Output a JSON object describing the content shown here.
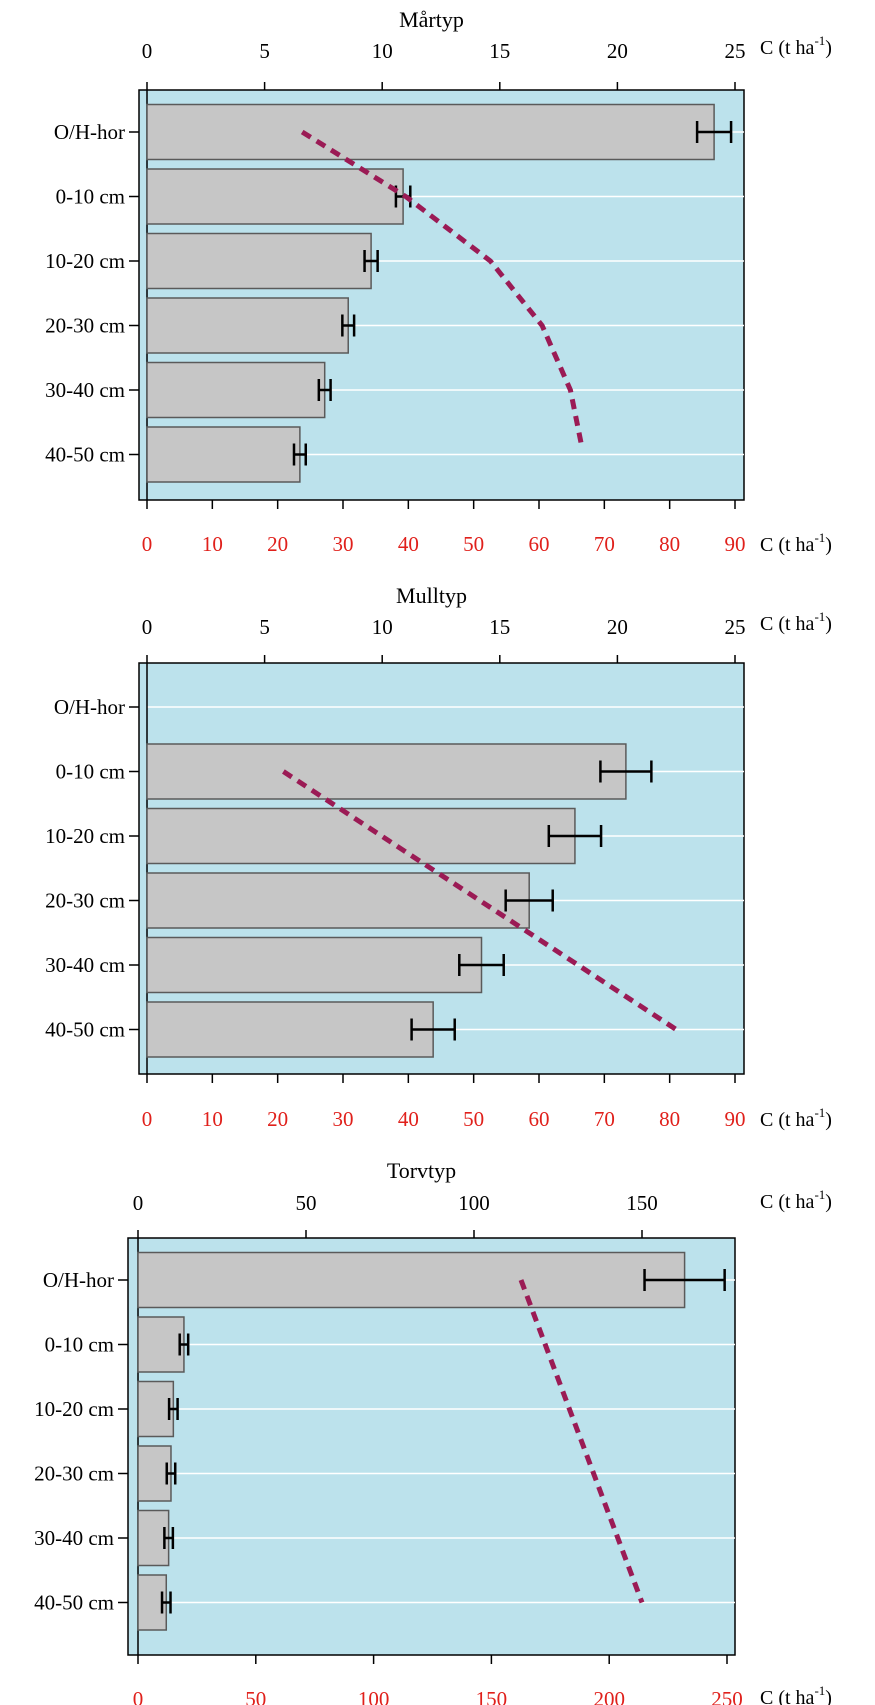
{
  "chart_data": [
    {
      "type": "bar",
      "title": "Mårtyp",
      "categories": [
        "O/H-hor",
        "0-10 cm",
        "10-20 cm",
        "20-30 cm",
        "30-40 cm",
        "40-50 cm"
      ],
      "values": [
        86.8,
        39.2,
        34.3,
        30.8,
        27.2,
        23.4
      ],
      "errors": [
        2.6,
        1.1,
        1.0,
        0.9,
        0.9,
        0.9
      ],
      "top_axis": {
        "label": "C (t ha",
        "sup": "-1",
        "label_end": ")",
        "ticks": [
          0,
          5,
          10,
          15,
          20,
          25
        ],
        "range": [
          0,
          25.5
        ]
      },
      "bottom_axis": {
        "label": "C (t ha",
        "sup": "-1",
        "label_end": ")",
        "ticks": [
          0,
          10,
          20,
          30,
          40,
          50,
          60,
          70,
          80,
          90
        ],
        "range": [
          0,
          91.7
        ]
      },
      "trend_line": {
        "axis": "top",
        "points": [
          [
            6.6,
            0
          ],
          [
            11.0,
            1
          ],
          [
            14.6,
            2
          ],
          [
            16.8,
            3
          ],
          [
            18.0,
            4
          ],
          [
            18.5,
            4.9
          ]
        ]
      },
      "colors": {
        "background": "#bce2ec",
        "bar": "#c6c6c6",
        "trend": "#9b1b55",
        "bottom_axis": "#e0201b"
      }
    },
    {
      "type": "bar",
      "title": "Mulltyp",
      "categories": [
        "O/H-hor",
        "0-10 cm",
        "10-20 cm",
        "20-30 cm",
        "30-40 cm",
        "40-50 cm"
      ],
      "values": [
        null,
        73.3,
        65.5,
        58.5,
        51.2,
        43.8
      ],
      "errors": [
        null,
        3.9,
        4.0,
        3.6,
        3.4,
        3.3
      ],
      "top_axis": {
        "label": "C (t ha",
        "sup": "-1",
        "label_end": ")",
        "ticks": [
          0,
          5,
          10,
          15,
          20,
          25
        ],
        "range": [
          0,
          25.5
        ]
      },
      "bottom_axis": {
        "label": "C (t ha",
        "sup": "-1",
        "label_end": ")",
        "ticks": [
          0,
          10,
          20,
          30,
          40,
          50,
          60,
          70,
          80,
          90
        ],
        "range": [
          0,
          91.7
        ]
      },
      "trend_line": {
        "axis": "top",
        "points": [
          [
            5.8,
            1
          ],
          [
            22.5,
            5
          ]
        ]
      },
      "colors": {
        "background": "#bce2ec",
        "bar": "#c6c6c6",
        "trend": "#9b1b55",
        "bottom_axis": "#e0201b"
      }
    },
    {
      "type": "bar",
      "title": "Torvtyp",
      "categories": [
        "O/H-hor",
        "0-10 cm",
        "10-20 cm",
        "20-30 cm",
        "30-40 cm",
        "40-50 cm"
      ],
      "values": [
        232,
        19.5,
        15.0,
        14.0,
        13.0,
        12.0
      ],
      "errors": [
        17,
        1.8,
        1.8,
        1.8,
        1.8,
        1.8
      ],
      "top_axis": {
        "label": "C (t ha",
        "sup": "-1",
        "label_end": ")",
        "ticks": [
          0,
          50,
          100,
          150
        ],
        "range": [
          0,
          178
        ]
      },
      "bottom_axis": {
        "label": "C (t ha",
        "sup": "-1",
        "label_end": ")",
        "ticks": [
          0,
          50,
          100,
          150,
          200,
          250
        ],
        "range": [
          0,
          254
        ]
      },
      "trend_line": {
        "axis": "top",
        "points": [
          [
            114,
            0
          ],
          [
            150,
            5
          ]
        ]
      },
      "colors": {
        "background": "#bce2ec",
        "bar": "#c6c6c6",
        "trend": "#9b1b55",
        "bottom_axis": "#e0201b"
      }
    }
  ]
}
